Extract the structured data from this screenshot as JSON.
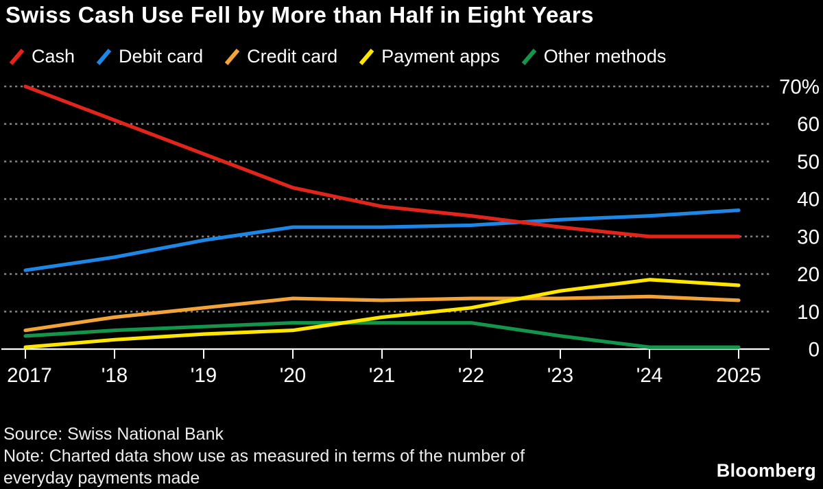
{
  "title": "Swiss Cash Use Fell by More than Half in Eight Years",
  "legend": {
    "items": [
      {
        "label": "Cash",
        "color": "#e1251b"
      },
      {
        "label": "Debit card",
        "color": "#1e86e5"
      },
      {
        "label": "Credit card",
        "color": "#f2a33a"
      },
      {
        "label": "Payment apps",
        "color": "#ffe600"
      },
      {
        "label": "Other methods",
        "color": "#13954b"
      }
    ]
  },
  "chart_data": {
    "type": "line",
    "title": "Swiss Cash Use Fell by More than Half in Eight Years",
    "x": [
      2017,
      2018,
      2019,
      2020,
      2021,
      2022,
      2023,
      2024,
      2025
    ],
    "x_tick_labels": [
      "2017",
      "'18",
      "'19",
      "'20",
      "'21",
      "'22",
      "'23",
      "'24",
      "2025"
    ],
    "y_axis": {
      "ylim": [
        0,
        70
      ],
      "ticks": [
        0,
        10,
        20,
        30,
        40,
        50,
        60,
        70
      ],
      "top_label": "70%",
      "unit": "%",
      "side": "right",
      "gridlines": "dotted"
    },
    "series": [
      {
        "name": "Cash",
        "color": "#e1251b",
        "values": [
          70,
          61,
          52,
          43,
          38,
          35.5,
          32.5,
          30,
          30
        ]
      },
      {
        "name": "Debit card",
        "color": "#1e86e5",
        "values": [
          21,
          24.5,
          29,
          32.5,
          32.5,
          33,
          34.5,
          35.5,
          37
        ]
      },
      {
        "name": "Credit card",
        "color": "#f2a33a",
        "values": [
          5,
          8.5,
          11,
          13.5,
          13,
          13.5,
          13.5,
          14,
          13
        ]
      },
      {
        "name": "Payment apps",
        "color": "#ffe600",
        "values": [
          0.5,
          2.5,
          4,
          5,
          8.5,
          11,
          15.5,
          18.5,
          17
        ]
      },
      {
        "name": "Other methods",
        "color": "#13954b",
        "values": [
          3.5,
          5,
          6,
          7,
          7,
          7,
          3.5,
          0.5,
          0.5
        ]
      }
    ]
  },
  "footer": {
    "source": "Source: Swiss National Bank",
    "note_line1": "Note: Charted data show use as measured in terms of the number of",
    "note_line2": "everyday payments made",
    "brand": "Bloomberg"
  },
  "colors": {
    "background": "#000000",
    "text": "#ffffff",
    "grid": "#7f7f7f",
    "axis": "#ffffff"
  }
}
